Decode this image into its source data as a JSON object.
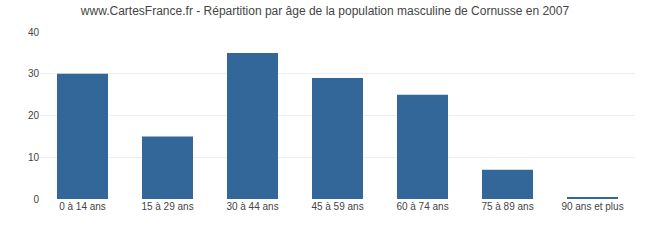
{
  "chart_data": {
    "type": "bar",
    "title": "www.CartesFrance.fr - Répartition par âge de la population masculine de Cornusse en 2007",
    "categories": [
      "0 à 14 ans",
      "15 à 29 ans",
      "30 à 44 ans",
      "45 à 59 ans",
      "60 à 74 ans",
      "75 à 89 ans",
      "90 ans et plus"
    ],
    "values": [
      30,
      15,
      35,
      29,
      25,
      7,
      0.5
    ],
    "color": "#336699",
    "ylim": [
      0,
      40
    ],
    "yticks": [
      0,
      10,
      20,
      30,
      40
    ],
    "grid": true
  }
}
